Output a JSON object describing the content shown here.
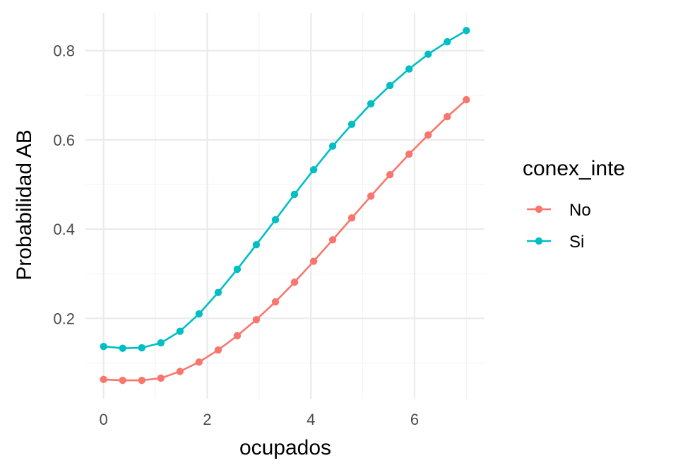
{
  "chart_data": {
    "type": "line",
    "xlabel": "ocupados",
    "ylabel": "Probabilidad AB",
    "xlim": [
      -0.35,
      7.35
    ],
    "ylim": [
      0.02,
      0.885
    ],
    "x_ticks": [
      0,
      2,
      4,
      6
    ],
    "x_tick_labels": [
      "0",
      "2",
      "4",
      "6"
    ],
    "y_ticks": [
      0.2,
      0.4,
      0.6,
      0.8
    ],
    "y_tick_labels": [
      "0.2",
      "0.4",
      "0.6",
      "0.8"
    ],
    "grid": true,
    "legend": {
      "title": "conex_inte",
      "position": "right"
    },
    "x": [
      0,
      0.368,
      0.737,
      1.105,
      1.474,
      1.842,
      2.211,
      2.579,
      2.947,
      3.316,
      3.684,
      4.053,
      4.421,
      4.789,
      5.158,
      5.526,
      5.895,
      6.263,
      6.632,
      7.0
    ],
    "series": [
      {
        "name": "No",
        "color": "#F8766D",
        "values": [
          0.063,
          0.061,
          0.061,
          0.066,
          0.081,
          0.102,
          0.129,
          0.161,
          0.197,
          0.237,
          0.281,
          0.328,
          0.376,
          0.425,
          0.474,
          0.522,
          0.568,
          0.611,
          0.652,
          0.69
        ]
      },
      {
        "name": "Si",
        "color": "#00BFC4",
        "values": [
          0.137,
          0.133,
          0.134,
          0.145,
          0.171,
          0.21,
          0.258,
          0.31,
          0.365,
          0.421,
          0.478,
          0.533,
          0.586,
          0.635,
          0.681,
          0.722,
          0.759,
          0.792,
          0.82,
          0.845
        ]
      }
    ]
  }
}
